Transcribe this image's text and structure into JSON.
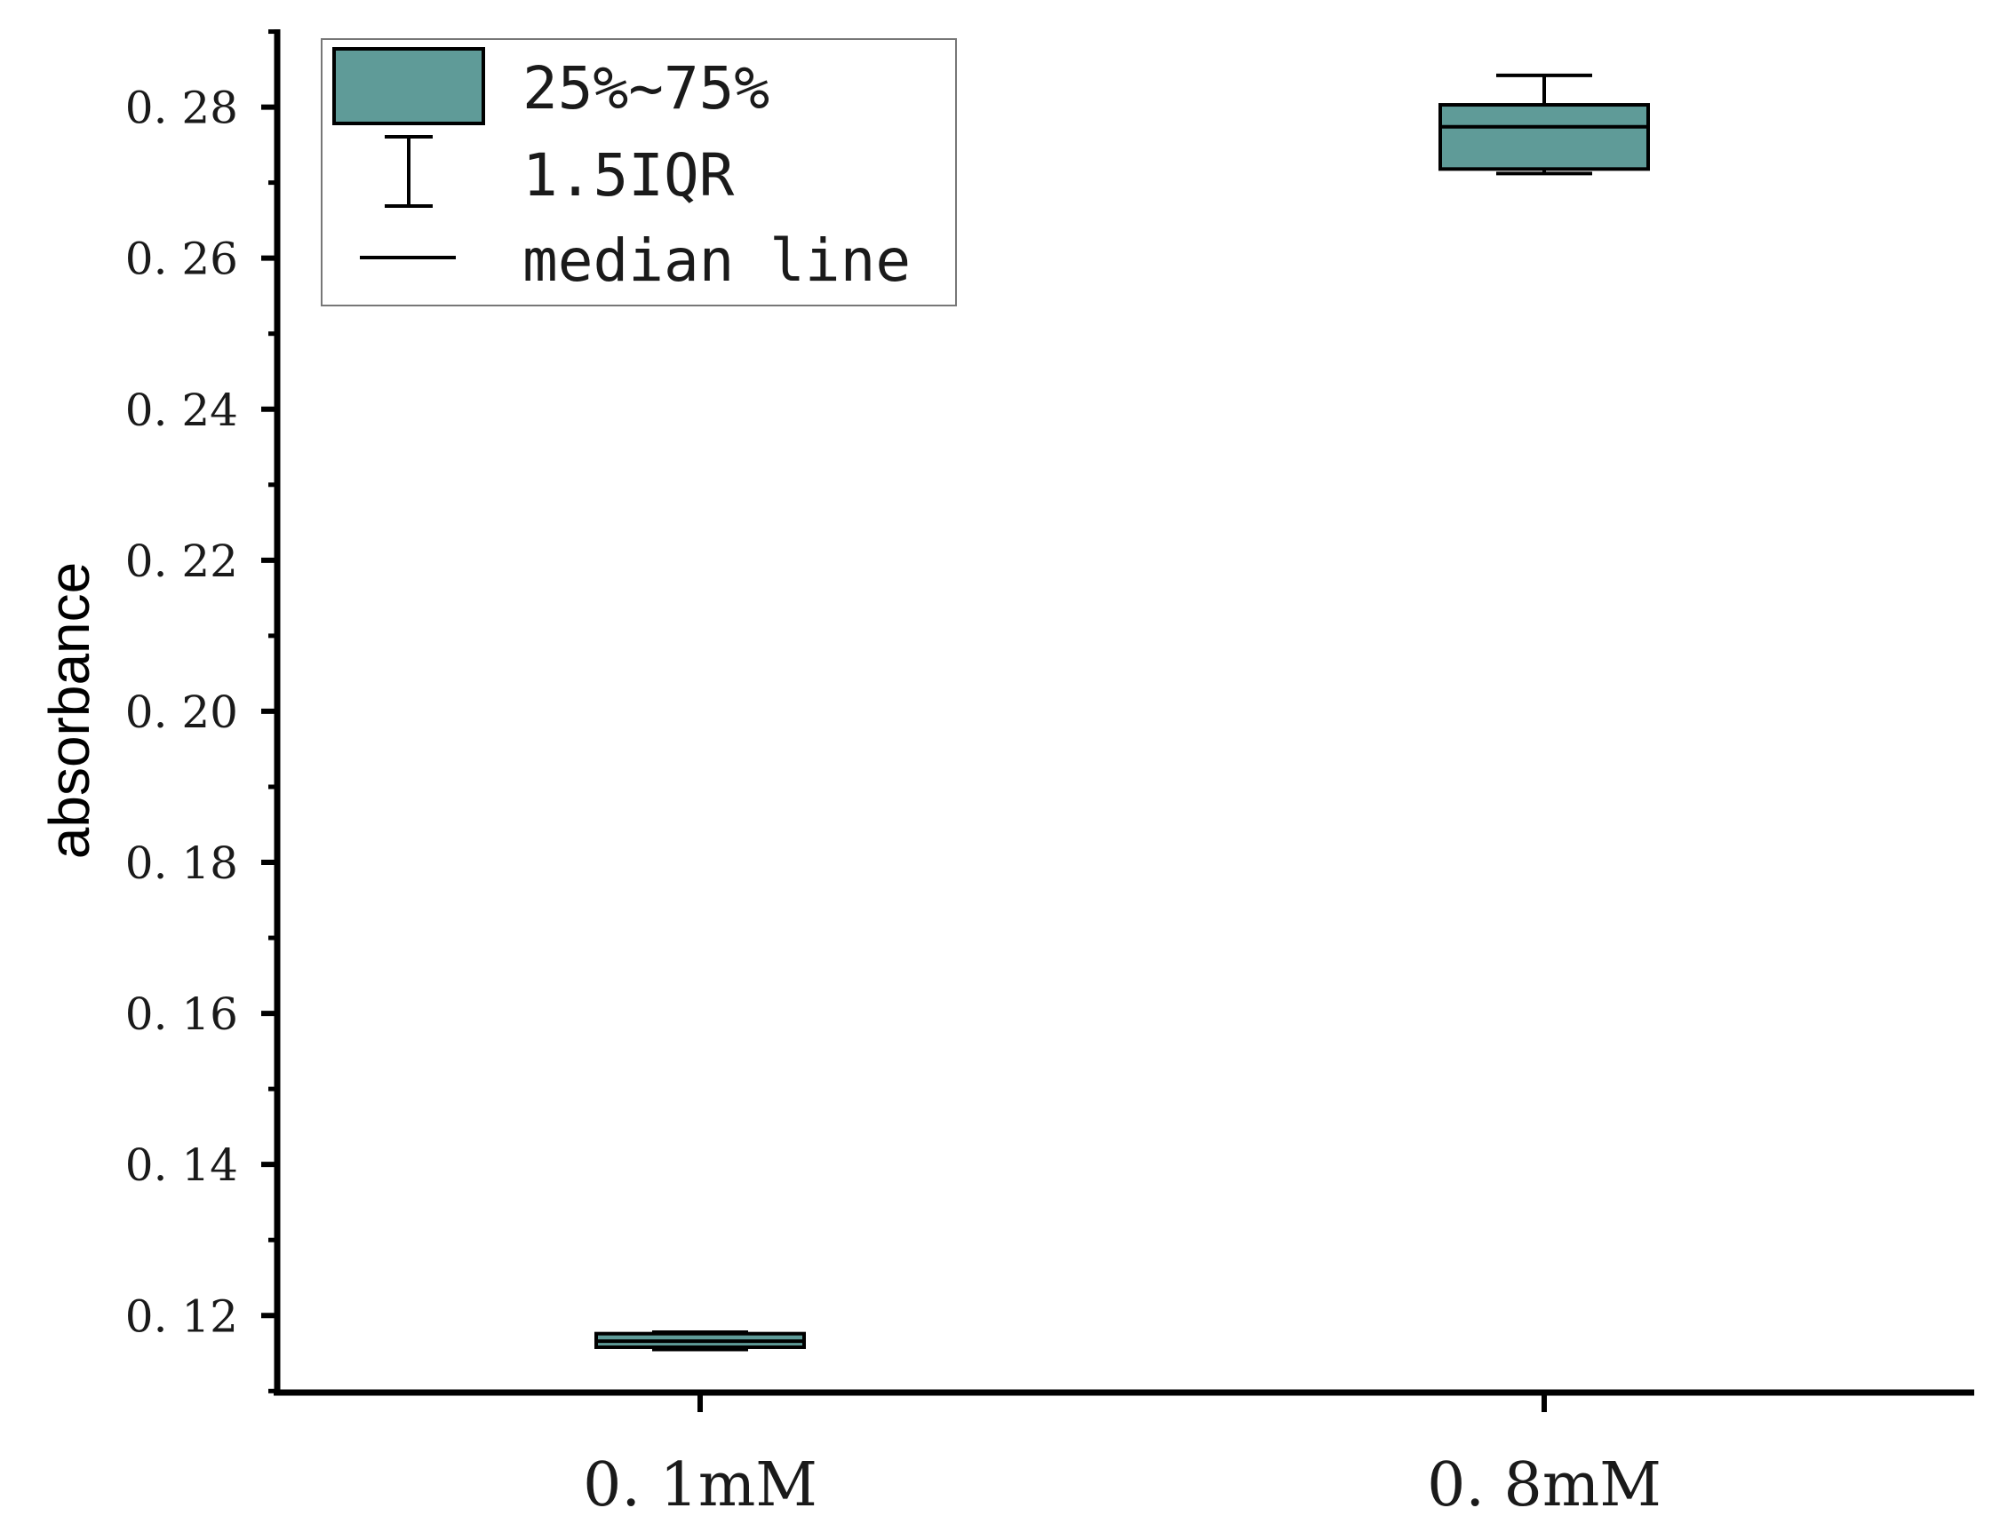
{
  "chart_data": {
    "type": "box",
    "ylabel": "absorbance",
    "xlabel": "",
    "ylim": [
      0.1098,
      0.2903
    ],
    "yticks": [
      0.12,
      0.14,
      0.16,
      0.18,
      0.2,
      0.22,
      0.24,
      0.26,
      0.28
    ],
    "ytick_labels": [
      "0. 12",
      "0. 14",
      "0. 16",
      "0. 18",
      "0. 20",
      "0. 22",
      "0. 24",
      "0. 26",
      "0. 28"
    ],
    "categories": [
      "0. 1mM",
      "0. 8mM"
    ],
    "boxes": [
      {
        "category": "0. 1mM",
        "whisker_low": 0.1155,
        "q1": 0.1158,
        "median": 0.1166,
        "q3": 0.1176,
        "whisker_high": 0.1178
      },
      {
        "category": "0. 8mM",
        "whisker_low": 0.2712,
        "q1": 0.2718,
        "median": 0.2774,
        "q3": 0.2803,
        "whisker_high": 0.2842
      }
    ],
    "box_color": "#5f9b98",
    "legend": {
      "position": "top-left",
      "entries": [
        "25%~75%",
        "1.5IQR",
        "median line"
      ]
    },
    "grid": false
  }
}
